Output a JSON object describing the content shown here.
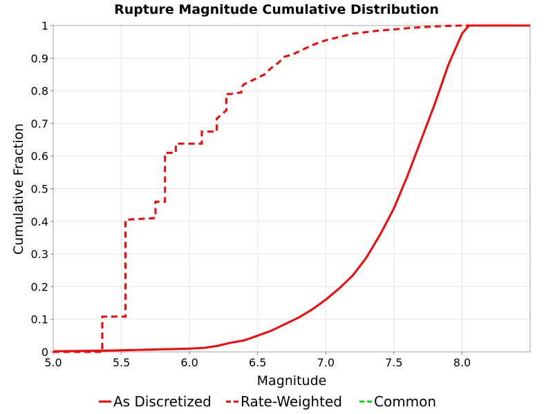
{
  "chart_data": {
    "type": "line",
    "title": "Rupture Magnitude Cumulative Distribution",
    "xlabel": "Magnitude",
    "ylabel": "Cumulative Fraction",
    "xlim": [
      5.0,
      8.5
    ],
    "ylim": [
      0,
      1
    ],
    "xticks": [
      "5.0",
      "5.5",
      "6.0",
      "6.5",
      "7.0",
      "7.5",
      "8.0"
    ],
    "xtick_values": [
      5.0,
      5.5,
      6.0,
      6.5,
      7.0,
      7.5,
      8.0
    ],
    "yticks": [
      "0",
      "0.1",
      "0.2",
      "0.3",
      "0.4",
      "0.5",
      "0.6",
      "0.7",
      "0.8",
      "0.9",
      "1"
    ],
    "ytick_values": [
      0,
      0.1,
      0.2,
      0.3,
      0.4,
      0.5,
      0.6,
      0.7,
      0.8,
      0.9,
      1.0
    ],
    "grid": true,
    "legend_position": "bottom",
    "series": [
      {
        "name": "As Discretized",
        "color": "#ff0000",
        "style": "solid",
        "x": [
          5.0,
          5.2,
          5.4,
          5.6,
          5.8,
          6.0,
          6.1,
          6.2,
          6.3,
          6.4,
          6.5,
          6.6,
          6.7,
          6.8,
          6.9,
          7.0,
          7.1,
          7.2,
          7.3,
          7.4,
          7.5,
          7.6,
          7.7,
          7.8,
          7.9,
          8.0,
          8.05,
          8.1,
          8.3,
          8.5
        ],
        "y": [
          0.002,
          0.003,
          0.004,
          0.006,
          0.008,
          0.01,
          0.012,
          0.018,
          0.028,
          0.035,
          0.05,
          0.065,
          0.085,
          0.105,
          0.13,
          0.16,
          0.195,
          0.235,
          0.29,
          0.36,
          0.44,
          0.54,
          0.65,
          0.76,
          0.88,
          0.975,
          1.0,
          1.0,
          1.0,
          1.0
        ]
      },
      {
        "name": "Rate-Weighted",
        "color": "#ff0000",
        "style": "dashed",
        "x": [
          5.0,
          5.36,
          5.36,
          5.53,
          5.53,
          5.75,
          5.75,
          5.82,
          5.82,
          5.9,
          5.9,
          6.09,
          6.09,
          6.2,
          6.2,
          6.27,
          6.27,
          6.3,
          6.3,
          6.38,
          6.38,
          6.4,
          6.45,
          6.5,
          6.55,
          6.6,
          6.65,
          6.7,
          6.75,
          6.8,
          6.9,
          7.0,
          7.1,
          7.2,
          7.3,
          7.4,
          7.5,
          7.6,
          7.7,
          7.8,
          7.9,
          8.0,
          8.1,
          8.5
        ],
        "y": [
          0.0,
          0.0,
          0.108,
          0.108,
          0.405,
          0.41,
          0.46,
          0.46,
          0.61,
          0.61,
          0.638,
          0.638,
          0.675,
          0.675,
          0.715,
          0.74,
          0.79,
          0.79,
          0.79,
          0.795,
          0.81,
          0.82,
          0.83,
          0.84,
          0.85,
          0.87,
          0.885,
          0.905,
          0.91,
          0.92,
          0.94,
          0.955,
          0.965,
          0.975,
          0.98,
          0.985,
          0.988,
          0.992,
          0.995,
          0.997,
          0.999,
          1.0,
          1.0,
          1.0
        ]
      },
      {
        "name": "Common",
        "color": "#00e000",
        "style": "dashed",
        "x": [],
        "y": []
      }
    ]
  }
}
